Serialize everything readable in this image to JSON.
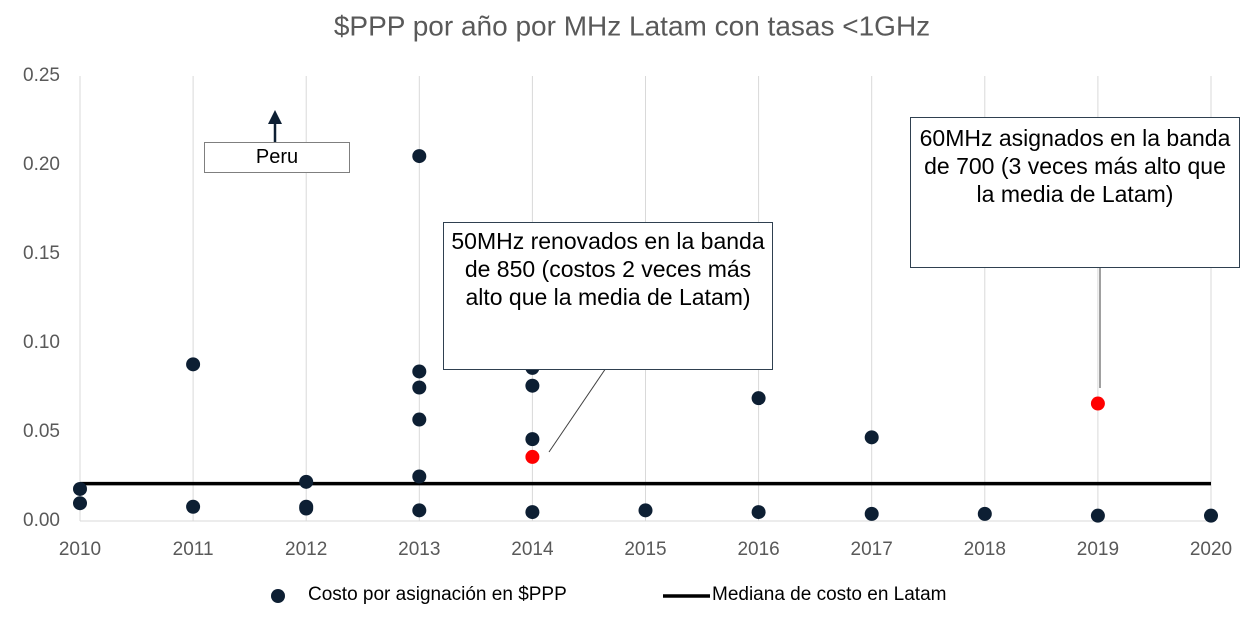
{
  "chart_data": {
    "type": "scatter",
    "title": "$PPP por año por MHz Latam con tasas <1GHz",
    "series": [
      {
        "name": "Costo por asignación en $PPP",
        "type": "scatter",
        "color": "#0d1f33",
        "x": [
          2010,
          2010,
          2011,
          2011,
          2012,
          2012,
          2012,
          2013,
          2013,
          2013,
          2013,
          2013,
          2013,
          2014,
          2014,
          2014,
          2014,
          2014,
          2015,
          2016,
          2016,
          2017,
          2017,
          2018,
          2019,
          2019,
          2020
        ],
        "values": [
          0.018,
          0.01,
          0.088,
          0.008,
          0.022,
          0.008,
          0.007,
          0.205,
          0.084,
          0.075,
          0.057,
          0.025,
          0.006,
          0.086,
          0.076,
          0.046,
          0.036,
          0.005,
          0.006,
          0.069,
          0.005,
          0.047,
          0.004,
          0.004,
          0.066,
          0.003,
          0.003
        ],
        "point_colors": [
          "#0d1f33",
          "#0d1f33",
          "#0d1f33",
          "#0d1f33",
          "#0d1f33",
          "#0d1f33",
          "#0d1f33",
          "#0d1f33",
          "#0d1f33",
          "#0d1f33",
          "#0d1f33",
          "#0d1f33",
          "#0d1f33",
          "#0d1f33",
          "#0d1f33",
          "#0d1f33",
          "#ff0000",
          "#0d1f33",
          "#0d1f33",
          "#0d1f33",
          "#0d1f33",
          "#0d1f33",
          "#0d1f33",
          "#0d1f33",
          "#ff0000",
          "#0d1f33",
          "#0d1f33"
        ]
      },
      {
        "name": "Mediana de costo en Latam",
        "type": "line",
        "color": "#000000",
        "x": [
          2010,
          2020
        ],
        "values": [
          0.021,
          0.021
        ]
      }
    ],
    "annotations": [
      "Peru",
      "50MHz renovados en la banda de 850 (costos 2 veces más alto que la media de Latam)",
      "60MHz asignados en la banda de 700 (3 veces más alto que la media de Latam)"
    ],
    "xlim": [
      2010,
      2020
    ],
    "xticks": [
      2010,
      2011,
      2012,
      2013,
      2014,
      2015,
      2016,
      2017,
      2018,
      2019,
      2020
    ],
    "ylim": [
      0,
      0.25
    ],
    "yticks": [
      {
        "value": 0,
        "label": "0.00"
      },
      0.05,
      {
        "value": 0.1,
        "label": "0.10"
      },
      0.15,
      {
        "value": 0.2,
        "label": "0.20"
      },
      0.25
    ],
    "grid": "x",
    "legend": "bottom"
  }
}
